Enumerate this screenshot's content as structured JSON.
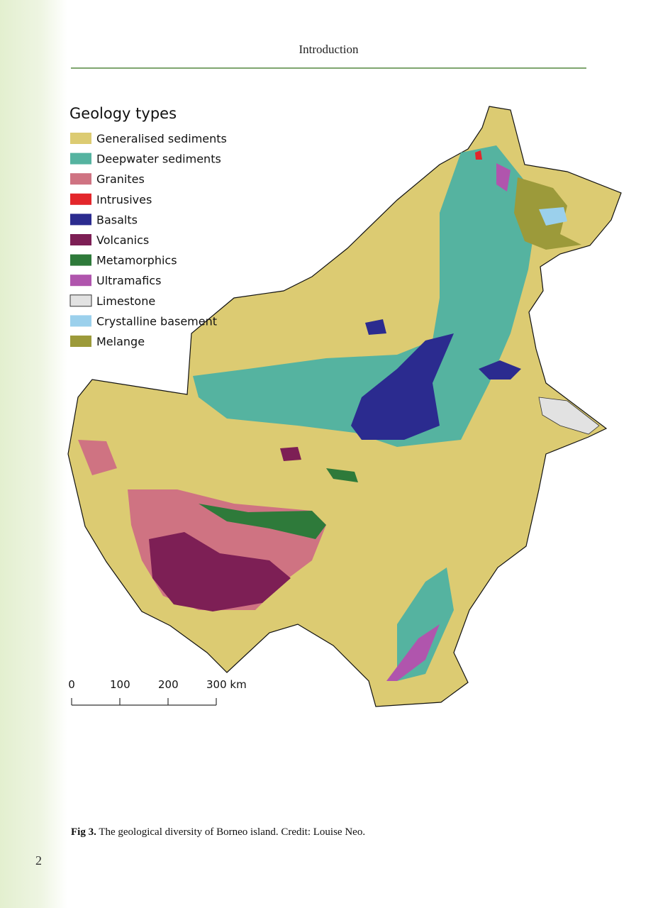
{
  "header": {
    "title": "Introduction"
  },
  "legend": {
    "title": "Geology types",
    "items": [
      {
        "label": "Generalised sediments",
        "color": "#dccb72"
      },
      {
        "label": "Deepwater sediments",
        "color": "#55b3a0"
      },
      {
        "label": "Granites",
        "color": "#cf7382"
      },
      {
        "label": "Intrusives",
        "color": "#e3262b"
      },
      {
        "label": "Basalts",
        "color": "#2b2b8f"
      },
      {
        "label": "Volcanics",
        "color": "#7d1f55"
      },
      {
        "label": "Metamorphics",
        "color": "#2e7a3a"
      },
      {
        "label": "Ultramafics",
        "color": "#b055ad"
      },
      {
        "label": "Limestone",
        "color": "#e2e2e2"
      },
      {
        "label": "Crystalline basement",
        "color": "#9bd0ec"
      },
      {
        "label": "Melange",
        "color": "#9c9a3a"
      }
    ]
  },
  "scale_bar": {
    "labels": [
      "0",
      "100",
      "200",
      "300 km"
    ]
  },
  "caption": {
    "label": "Fig 3.",
    "text": "The geological diversity of Borneo island. Credit: Louise Neo."
  },
  "page_number": "2"
}
